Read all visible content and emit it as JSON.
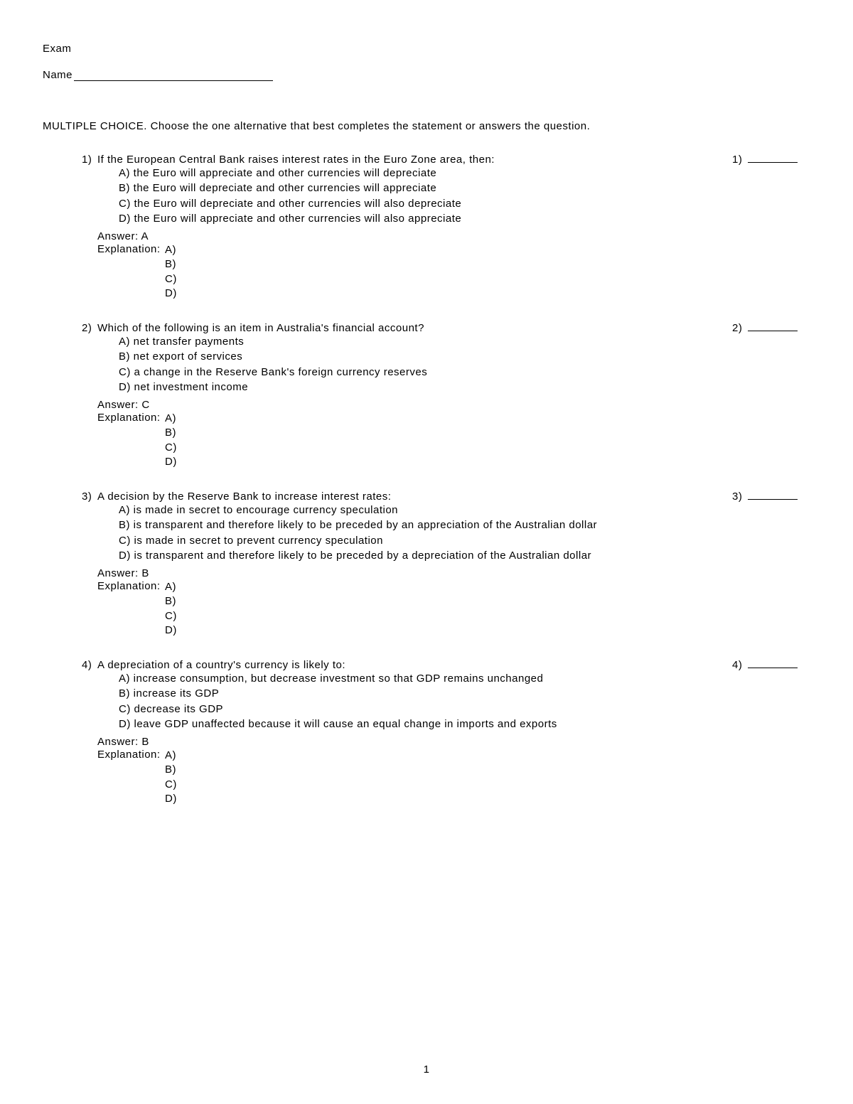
{
  "header": {
    "exam_label": "Exam",
    "name_label": "Name"
  },
  "section_title": "MULTIPLE CHOICE.  Choose the one alternative that best completes the statement or answers the question.",
  "questions": [
    {
      "number": "1)",
      "stem": "If the European Central Bank raises interest rates in the Euro Zone area, then:",
      "options": {
        "A": "A) the Euro will appreciate and other currencies will depreciate",
        "B": "B) the Euro will depreciate and other currencies will appreciate",
        "C": "C) the Euro will depreciate and other currencies will also depreciate",
        "D": "D) the Euro will appreciate and other currencies will also appreciate"
      },
      "answer_label": "Answer:  A",
      "explanation_label": "Explanation:",
      "expl_options": [
        "A)",
        "B)",
        "C)",
        "D)"
      ],
      "num_label": "1)"
    },
    {
      "number": "2)",
      "stem": "Which of the following is an item in Australia's financial account?",
      "options": {
        "A": "A) net transfer payments",
        "B": "B) net export of services",
        "C": "C) a change in the Reserve Bank's foreign currency reserves",
        "D": "D) net investment income"
      },
      "answer_label": "Answer:  C",
      "explanation_label": "Explanation:",
      "expl_options": [
        "A)",
        "B)",
        "C)",
        "D)"
      ],
      "num_label": "2)"
    },
    {
      "number": "3)",
      "stem": "A decision by the Reserve Bank to increase interest rates:",
      "options": {
        "A": "A) is made in secret to encourage currency speculation",
        "B": "B) is transparent and therefore likely to be preceded by an appreciation of the Australian dollar",
        "C": "C) is made in secret to prevent currency speculation",
        "D": "D) is transparent and therefore likely to be preceded by a depreciation of the Australian dollar"
      },
      "answer_label": "Answer:  B",
      "explanation_label": "Explanation:",
      "expl_options": [
        "A)",
        "B)",
        "C)",
        "D)"
      ],
      "num_label": "3)"
    },
    {
      "number": "4)",
      "stem": "A depreciation of a country's currency is likely to:",
      "options": {
        "A": "A) increase consumption, but decrease investment so that GDP remains unchanged",
        "B": "B) increase its GDP",
        "C": "C) decrease its GDP",
        "D": "D) leave GDP unaffected because it will cause an equal change in imports and exports"
      },
      "answer_label": "Answer:  B",
      "explanation_label": "Explanation:",
      "expl_options": [
        "A)",
        "B)",
        "C)",
        "D)"
      ],
      "num_label": "4)"
    }
  ],
  "page_number": "1"
}
